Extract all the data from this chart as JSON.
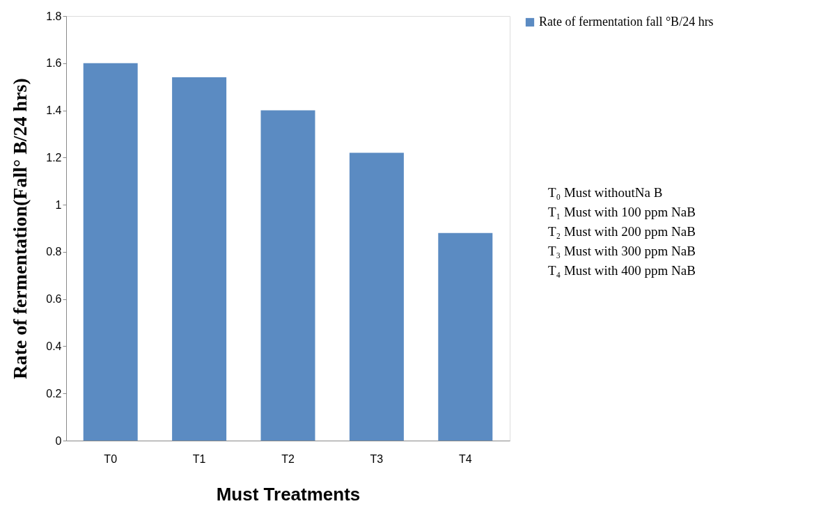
{
  "chart_data": {
    "type": "bar",
    "xlabel": "Must Treatments",
    "ylabel": "Rate of fermentation(Fall° B/24 hrs)",
    "categories": [
      "T0",
      "T1",
      "T2",
      "T3",
      "T4"
    ],
    "series": [
      {
        "name": "Rate of fermentation fall °B/24 hrs",
        "color": "#5b8bc2",
        "values": [
          1.6,
          1.54,
          1.4,
          1.22,
          0.88
        ]
      }
    ],
    "ylim": [
      0,
      1.8
    ],
    "yticks": [
      0,
      0.2,
      0.4,
      0.6,
      0.8,
      1,
      1.2,
      1.4,
      1.6,
      1.8
    ],
    "grid": false,
    "legend": "right",
    "annotations": [
      "T₀ Must withoutNa B",
      "T₁ Must with 100 ppm NaB",
      "T₂ Must with 200 ppm NaB",
      "T₃ Must with 300 ppm NaB",
      "T₄ Must with 400 ppm NaB"
    ]
  }
}
